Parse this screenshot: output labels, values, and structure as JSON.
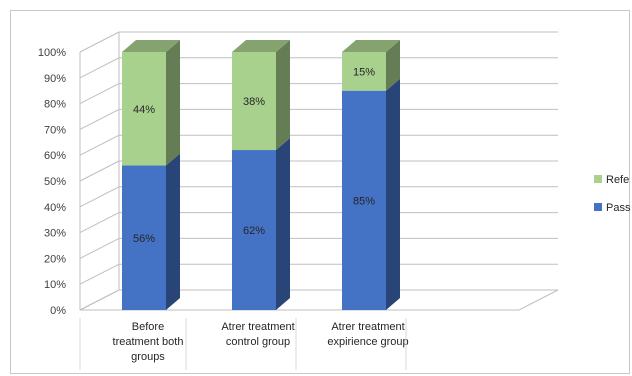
{
  "chart_data": {
    "type": "bar",
    "stacked": true,
    "percent_stacked": true,
    "three_d": true,
    "categories": [
      [
        "Before",
        "treatment both",
        "groups"
      ],
      [
        "Atrer treatment",
        "control group"
      ],
      [
        "Atrer treatment",
        "expirience group"
      ]
    ],
    "series": [
      {
        "name": "Pass",
        "values": [
          56,
          62,
          85
        ],
        "labels": [
          "56%",
          "62%",
          "85%"
        ],
        "color": "#4472c4"
      },
      {
        "name": "Refe",
        "values": [
          44,
          38,
          15
        ],
        "labels": [
          "44%",
          "38%",
          "15%"
        ],
        "color": "#a9d18e"
      }
    ],
    "yticks": [
      "0%",
      "10%",
      "20%",
      "30%",
      "40%",
      "50%",
      "60%",
      "70%",
      "80%",
      "90%",
      "100%"
    ],
    "ylim": [
      0,
      100
    ],
    "title": "",
    "xlabel": "",
    "ylabel": "",
    "legend": "right",
    "grid": true
  }
}
